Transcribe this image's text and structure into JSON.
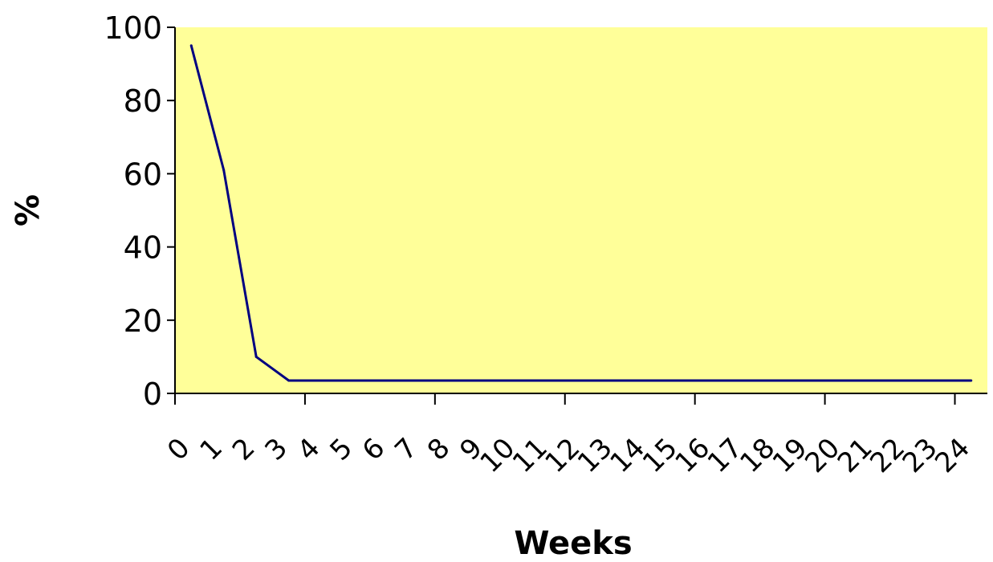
{
  "chart_data": {
    "type": "line",
    "title": "",
    "xlabel": "Weeks",
    "ylabel": "%",
    "categories": [
      "0",
      "1",
      "2",
      "3",
      "4",
      "5",
      "6",
      "7",
      "8",
      "9",
      "10",
      "11",
      "12",
      "13",
      "14",
      "15",
      "16",
      "17",
      "18",
      "19",
      "20",
      "21",
      "22",
      "23",
      "24"
    ],
    "series": [
      {
        "values": [
          95,
          61,
          10,
          3.5,
          3.5,
          3.5,
          3.5,
          3.5,
          3.5,
          3.5,
          3.5,
          3.5,
          3.5,
          3.5,
          3.5,
          3.5,
          3.5,
          3.5,
          3.5,
          3.5,
          3.5,
          3.5,
          3.5,
          3.5,
          3.5
        ]
      }
    ],
    "y_ticks": [
      "0",
      "20",
      "40",
      "60",
      "80",
      "100"
    ],
    "ylim": [
      0,
      100
    ],
    "grid": false,
    "legend": "none",
    "colors": {
      "plot_background": "#FFFF99",
      "line": "#000080",
      "axis": "#000000"
    }
  }
}
